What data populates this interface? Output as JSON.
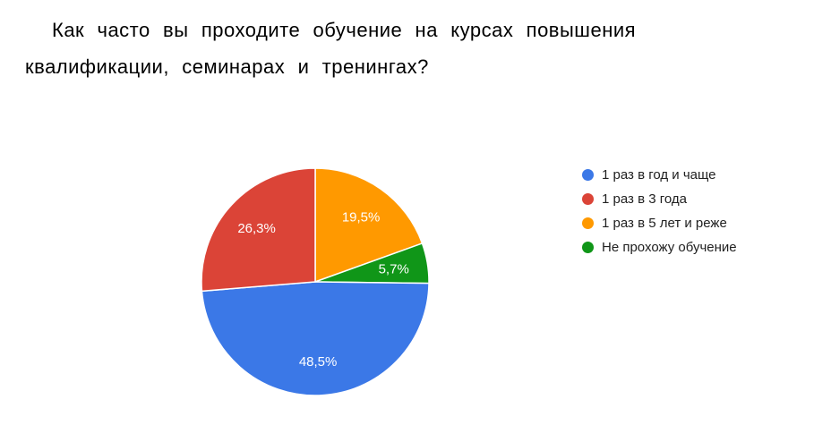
{
  "title": {
    "text": "Как часто вы проходите обучение на курсах повышения квалификации, семинарах и тренингах?"
  },
  "chart_data": {
    "type": "pie",
    "title": "Как часто вы проходите обучение на курсах повышения квалификации, семинарах и тренингах?",
    "unit": "%",
    "decimal_separator": ",",
    "start_angle_deg": 0,
    "direction": "clockwise",
    "legend_position": "right",
    "slice_border_color": "#ffffff",
    "label_color": "#ffffff",
    "slices": [
      {
        "label": "1 раз в год и чаще",
        "value": 48.5,
        "display": "48,5%",
        "color": "#3b78e7"
      },
      {
        "label": "1 раз в 3 года",
        "value": 26.3,
        "display": "26,3%",
        "color": "#db4437"
      },
      {
        "label": "1 раз в 5 лет и реже",
        "value": 19.5,
        "display": "19,5%",
        "color": "#ff9900"
      },
      {
        "label": "Не прохожу обучение",
        "value": 5.7,
        "display": "5,7%",
        "color": "#109618"
      }
    ],
    "render_order": [
      2,
      3,
      0,
      1
    ]
  }
}
